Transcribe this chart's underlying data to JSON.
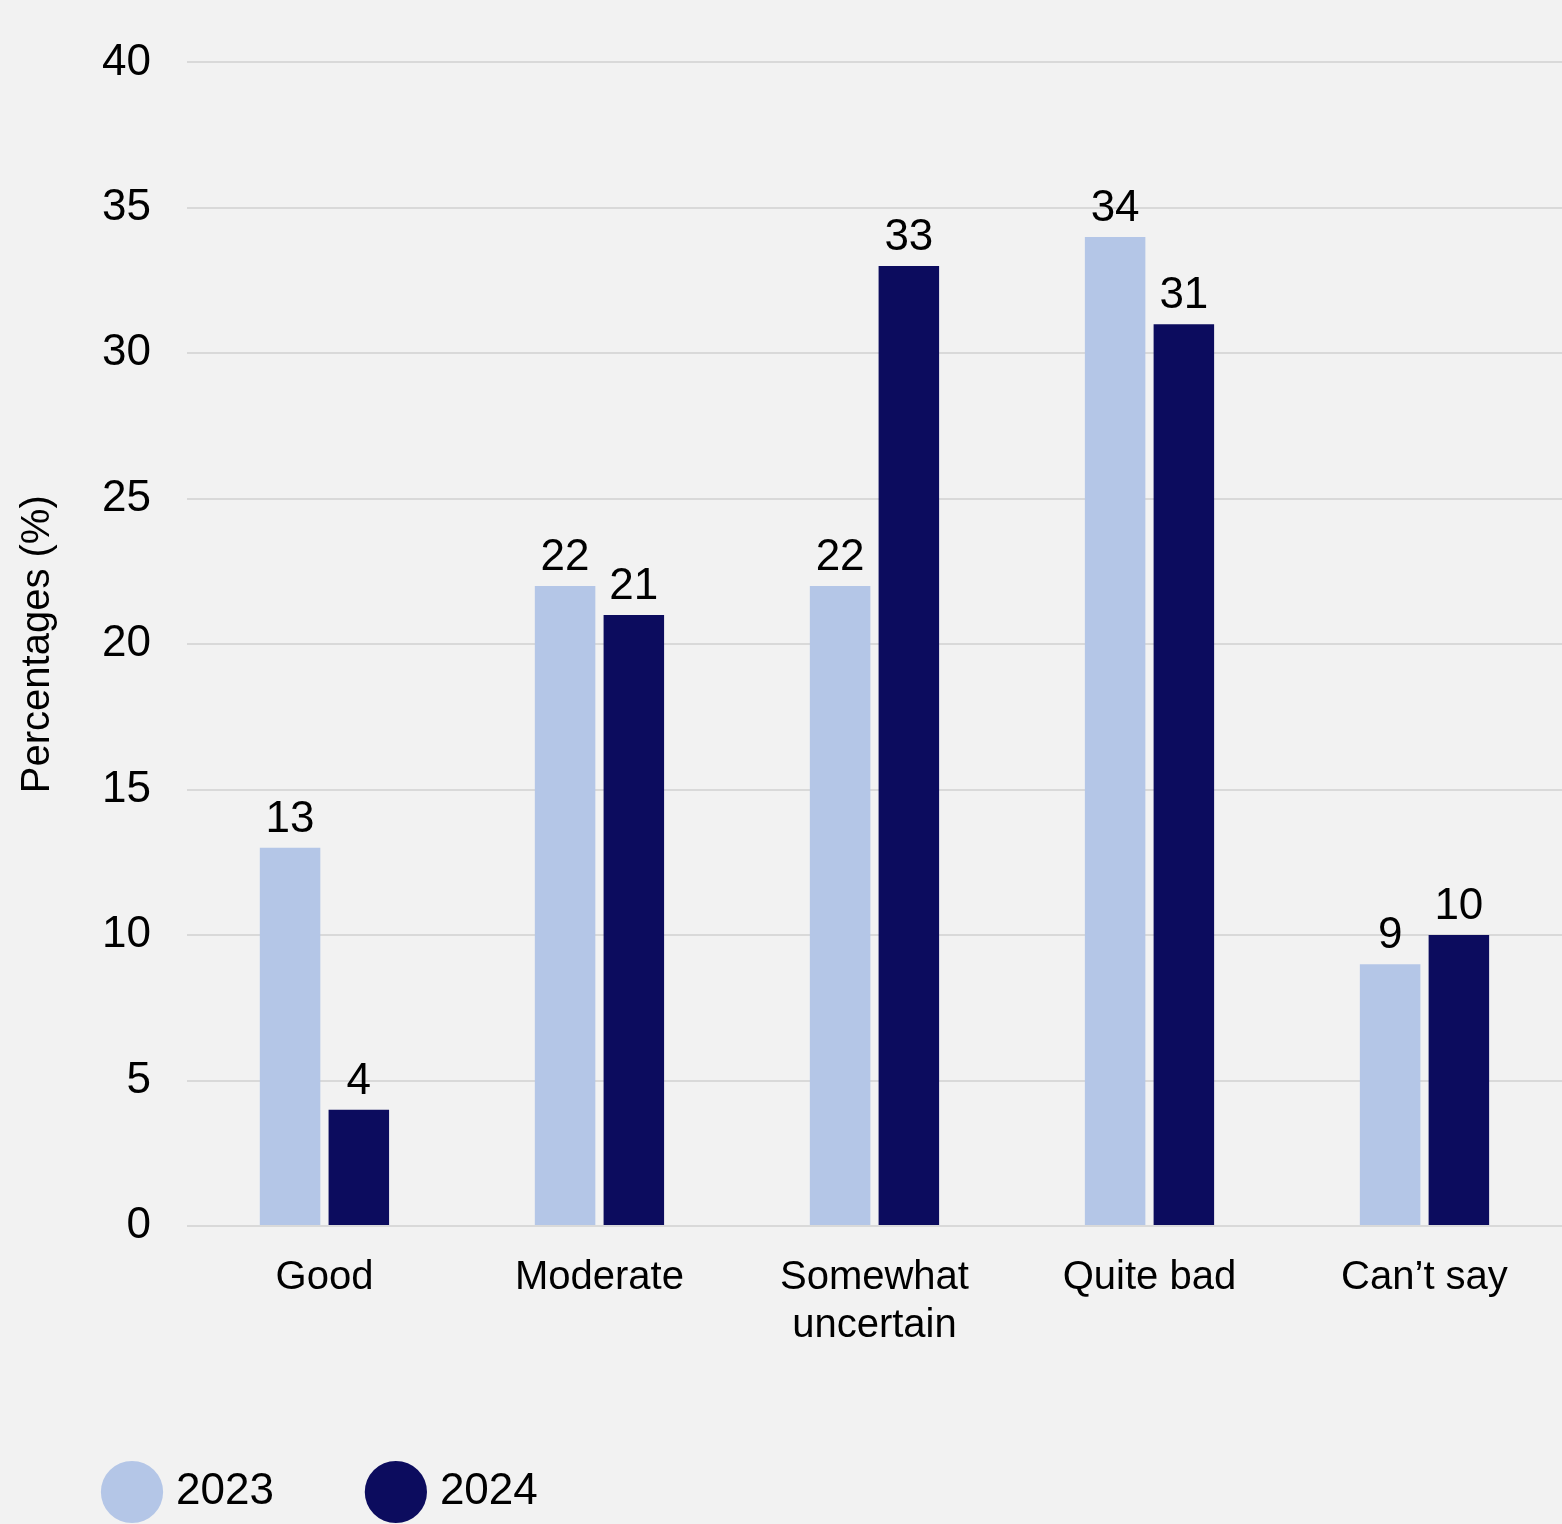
{
  "chart_data": {
    "type": "bar",
    "ylabel": "Percentages (%)",
    "categories": [
      "Good",
      "Moderate",
      "Somewhat uncertain",
      "Quite bad",
      "Can’t say"
    ],
    "series": [
      {
        "name": "2023",
        "color": "#b4c6e7",
        "values": [
          13,
          22,
          22,
          34,
          9
        ]
      },
      {
        "name": "2024",
        "color": "#0c0c5e",
        "values": [
          4,
          21,
          33,
          31,
          10
        ]
      }
    ],
    "ylim": [
      0,
      40
    ],
    "yticks": [
      0,
      5,
      10,
      15,
      20,
      25,
      30,
      35,
      40
    ],
    "grid": "y",
    "legend": "bottom left",
    "data_labels": true
  }
}
